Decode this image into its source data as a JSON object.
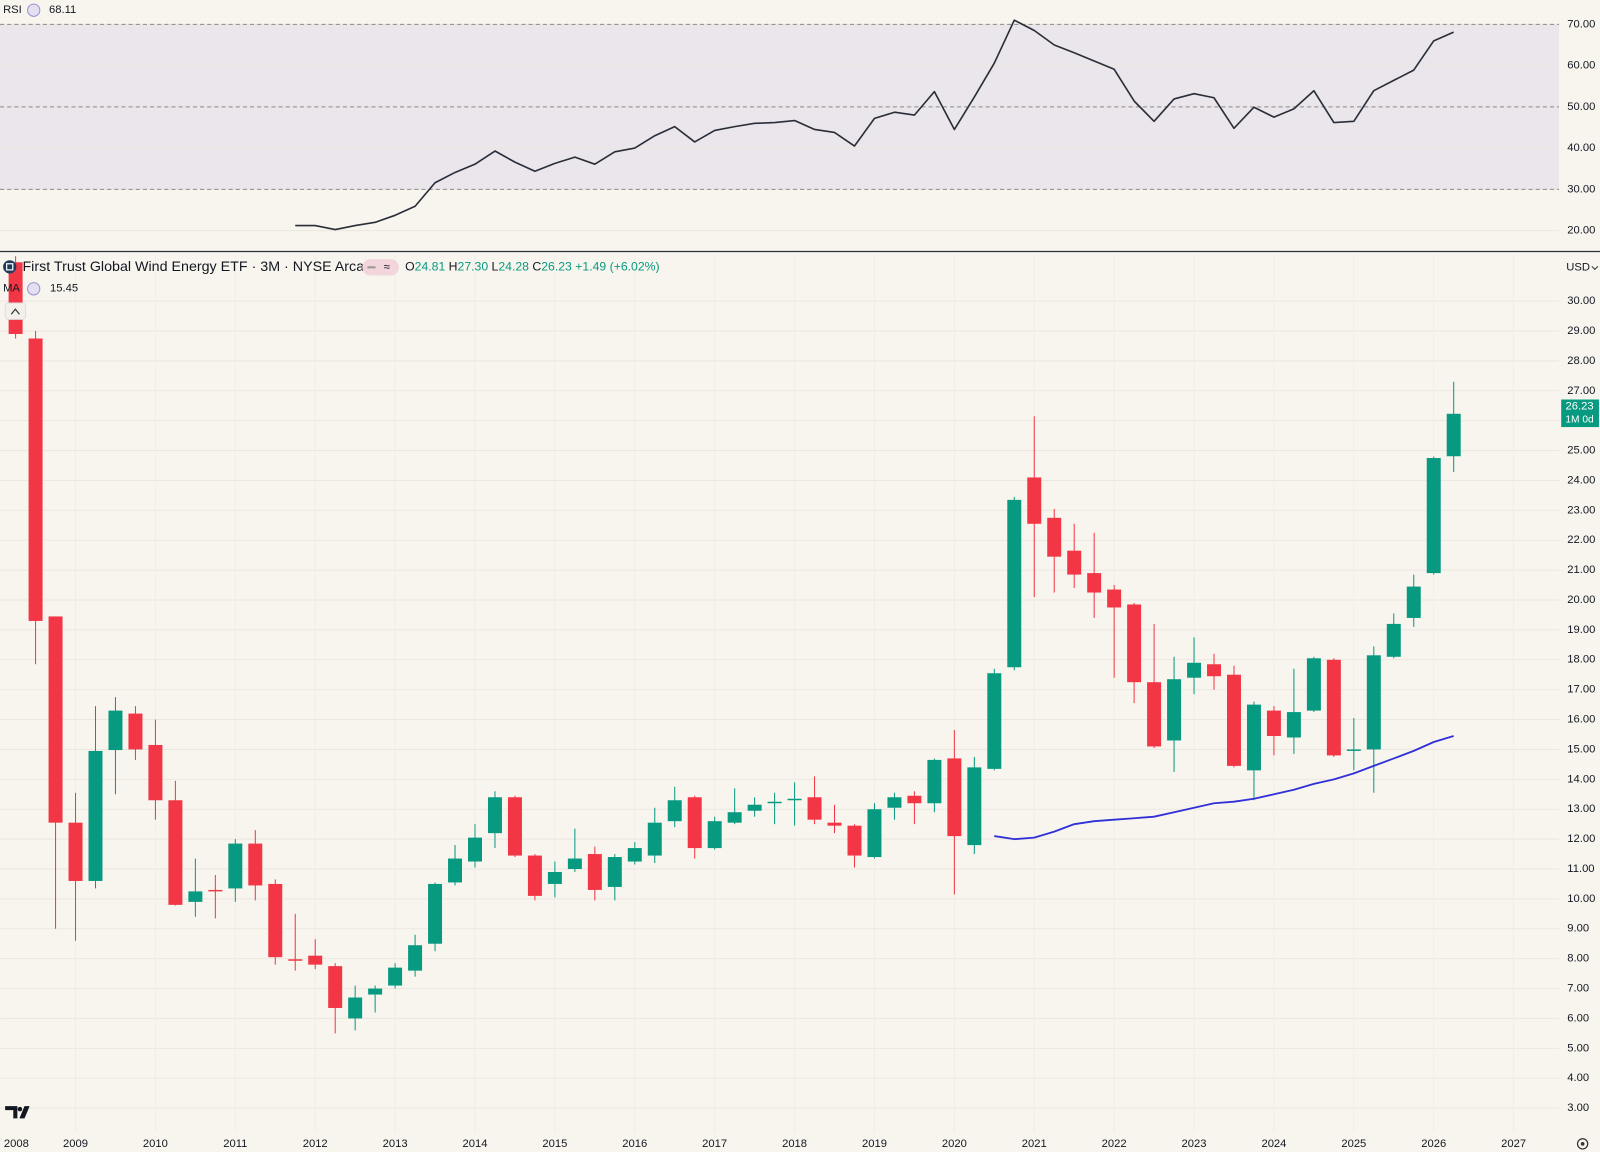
{
  "chart_data": [
    {
      "type": "line",
      "name": "RSI",
      "color": "#2a2e39",
      "x": [
        2008.25,
        2008.5,
        2008.75,
        2009,
        2009.25,
        2009.5,
        2009.75,
        2010,
        2010.25,
        2010.5,
        2010.75,
        2011,
        2011.25,
        2011.5,
        2011.75,
        2012,
        2012.25,
        2012.5,
        2012.75,
        2013,
        2013.25,
        2013.5,
        2013.75,
        2014,
        2014.25,
        2014.5,
        2014.75,
        2015,
        2015.25,
        2015.5,
        2015.75,
        2016,
        2016.25,
        2016.5,
        2016.75,
        2017,
        2017.25,
        2017.5,
        2017.75,
        2018,
        2018.25,
        2018.5,
        2018.75,
        2019,
        2019.25,
        2019.5,
        2019.75,
        2020,
        2020.25,
        2020.5,
        2020.75,
        2021,
        2021.25,
        2021.5,
        2021.75,
        2022,
        2022.25,
        2022.5,
        2022.75,
        2023,
        2023.25,
        2023.5,
        2023.75,
        2024,
        2024.25,
        2024.5,
        2024.75,
        2025,
        2025.25,
        2025.5,
        2025.75,
        2026,
        2026.25
      ],
      "values": [
        null,
        null,
        null,
        null,
        null,
        null,
        null,
        null,
        null,
        null,
        null,
        null,
        null,
        null,
        21.2,
        21.2,
        20.25,
        21.2,
        22.0,
        23.7,
        25.9,
        31.6,
        34.1,
        36.1,
        39.3,
        36.6,
        34.4,
        36.3,
        37.8,
        36.1,
        39.1,
        40.0,
        43.0,
        45.2,
        41.5,
        44.3,
        45.2,
        46.0,
        46.2,
        46.7,
        44.5,
        43.8,
        40.5,
        47.2,
        48.7,
        48.0,
        53.7,
        44.5,
        52.4,
        60.6,
        71.0,
        68.5,
        65.0,
        63.1,
        61.1,
        59.1,
        51.4,
        46.5,
        51.9,
        53.2,
        52.2,
        44.8,
        49.9,
        47.5,
        49.5,
        53.9,
        46.2,
        46.5,
        53.9,
        56.4,
        58.9,
        66.0,
        68.11
      ],
      "ylim": [
        15.3,
        75.9
      ],
      "yticks": [
        {
          "value": 20,
          "label": "20.00"
        },
        {
          "value": 30,
          "label": "30.00"
        },
        {
          "value": 40,
          "label": "40.00"
        },
        {
          "value": 50,
          "label": "50.00"
        },
        {
          "value": 60,
          "label": "60.00"
        },
        {
          "value": 70,
          "label": "70.00"
        }
      ],
      "levels": [
        70,
        50,
        30
      ],
      "band": [
        30,
        70
      ],
      "band_color": "#ebe5ec",
      "grid": true
    },
    {
      "type": "candlestick",
      "title": "First Trust Global Wind Energy ETF · 3M · NYSE Arca",
      "ohlc_legend": [
        {
          "key": "O",
          "value": "24.81"
        },
        {
          "key": "H",
          "value": "27.30"
        },
        {
          "key": "L",
          "value": "24.28"
        },
        {
          "key": "C",
          "value": "26.23"
        }
      ],
      "change": "+1.49 (+6.02%)",
      "currency": "USD",
      "price_tag": {
        "text": "26.23",
        "countdown": "1M 0d"
      },
      "up_color": "#089981",
      "down_color": "#f23645",
      "x": [
        2008.25,
        2008.5,
        2008.75,
        2009,
        2009.25,
        2009.5,
        2009.75,
        2010,
        2010.25,
        2010.5,
        2010.75,
        2011,
        2011.25,
        2011.5,
        2011.75,
        2012,
        2012.25,
        2012.5,
        2012.75,
        2013,
        2013.25,
        2013.5,
        2013.75,
        2014,
        2014.25,
        2014.5,
        2014.75,
        2015,
        2015.25,
        2015.5,
        2015.75,
        2016,
        2016.25,
        2016.5,
        2016.75,
        2017,
        2017.25,
        2017.5,
        2017.75,
        2018,
        2018.25,
        2018.5,
        2018.75,
        2019,
        2019.25,
        2019.5,
        2019.75,
        2020,
        2020.25,
        2020.5,
        2020.75,
        2021,
        2021.25,
        2021.5,
        2021.75,
        2022,
        2022.25,
        2022.5,
        2022.75,
        2023,
        2023.25,
        2023.5,
        2023.75,
        2024,
        2024.25,
        2024.5,
        2024.75,
        2025,
        2025.25,
        2025.5,
        2025.75,
        2026,
        2026.25
      ],
      "open": [
        31.3,
        28.75,
        19.45,
        12.55,
        10.6,
        14.98,
        16.2,
        15.15,
        13.3,
        9.9,
        10.3,
        10.35,
        11.85,
        10.5,
        7.98,
        8.1,
        7.75,
        6.0,
        6.8,
        7.1,
        7.6,
        8.5,
        10.55,
        11.25,
        12.2,
        13.4,
        11.45,
        10.5,
        11.0,
        11.5,
        10.4,
        11.25,
        11.45,
        12.6,
        13.4,
        11.7,
        12.55,
        12.95,
        13.2,
        13.3,
        13.4,
        12.55,
        12.45,
        11.4,
        13.05,
        13.45,
        13.2,
        14.7,
        11.8,
        14.35,
        17.75,
        24.1,
        22.75,
        21.65,
        20.9,
        20.35,
        19.85,
        17.25,
        15.3,
        17.4,
        17.85,
        17.5,
        14.3,
        16.3,
        15.4,
        16.3,
        18.0,
        14.95,
        15.0,
        18.1,
        19.4,
        20.9,
        24.81
      ],
      "high": [
        31.5,
        29.0,
        19.45,
        13.55,
        16.45,
        16.75,
        16.45,
        16.0,
        13.95,
        11.35,
        10.8,
        12.0,
        12.3,
        10.65,
        9.5,
        8.65,
        7.85,
        7.1,
        7.1,
        7.85,
        8.8,
        10.55,
        11.8,
        12.5,
        13.6,
        13.45,
        11.5,
        11.25,
        12.35,
        11.75,
        11.5,
        11.9,
        13.05,
        13.75,
        13.45,
        12.75,
        13.7,
        13.4,
        13.55,
        13.9,
        14.1,
        13.15,
        12.5,
        13.2,
        13.55,
        13.6,
        14.7,
        15.65,
        14.75,
        17.7,
        23.45,
        26.15,
        23.05,
        22.55,
        22.25,
        20.5,
        19.9,
        19.2,
        18.1,
        18.75,
        18.2,
        17.8,
        16.6,
        16.45,
        17.7,
        18.1,
        18.05,
        16.05,
        18.45,
        19.55,
        20.85,
        24.8,
        27.3
      ],
      "low": [
        28.75,
        17.85,
        9.0,
        8.6,
        10.35,
        13.5,
        14.65,
        12.65,
        9.78,
        9.4,
        9.35,
        9.9,
        9.95,
        7.8,
        7.6,
        7.65,
        5.5,
        5.6,
        6.2,
        7.0,
        7.4,
        8.25,
        10.45,
        11.05,
        11.7,
        11.4,
        9.95,
        10.05,
        10.9,
        9.95,
        9.95,
        11.15,
        11.2,
        12.4,
        11.35,
        11.65,
        12.5,
        12.75,
        12.5,
        12.45,
        12.5,
        12.2,
        11.05,
        11.35,
        12.65,
        12.5,
        12.9,
        10.15,
        11.5,
        14.3,
        17.65,
        20.1,
        20.25,
        20.4,
        19.4,
        17.4,
        16.55,
        15.05,
        14.25,
        16.85,
        17.0,
        14.4,
        13.3,
        14.8,
        14.85,
        16.25,
        14.75,
        14.3,
        13.55,
        18.05,
        19.1,
        20.85,
        24.28
      ],
      "close": [
        28.9,
        19.3,
        12.55,
        10.6,
        14.95,
        16.3,
        15.0,
        13.3,
        9.8,
        10.25,
        10.25,
        11.85,
        10.45,
        8.05,
        7.93,
        7.8,
        6.35,
        6.7,
        7.0,
        7.7,
        8.45,
        10.5,
        11.35,
        12.05,
        13.4,
        11.45,
        10.1,
        10.9,
        11.35,
        10.3,
        11.4,
        11.7,
        12.55,
        13.3,
        11.7,
        12.6,
        12.9,
        13.15,
        13.25,
        13.35,
        12.65,
        12.45,
        11.45,
        13.0,
        13.4,
        13.2,
        14.65,
        12.1,
        14.4,
        17.55,
        23.35,
        22.55,
        21.45,
        20.85,
        20.25,
        19.75,
        17.25,
        15.1,
        17.35,
        17.9,
        17.45,
        14.45,
        16.5,
        15.45,
        16.25,
        18.05,
        14.8,
        15.0,
        18.15,
        19.2,
        20.45,
        24.75,
        26.23
      ],
      "overlays": [
        {
          "name": "MA",
          "color": "#3030d8",
          "values": [
            null,
            null,
            null,
            null,
            null,
            null,
            null,
            null,
            null,
            null,
            null,
            null,
            null,
            null,
            null,
            null,
            null,
            null,
            null,
            null,
            null,
            null,
            null,
            null,
            null,
            null,
            null,
            null,
            null,
            null,
            null,
            null,
            null,
            null,
            null,
            null,
            null,
            null,
            null,
            null,
            null,
            null,
            null,
            null,
            null,
            null,
            null,
            null,
            null,
            12.1,
            12.0,
            12.05,
            12.25,
            12.5,
            12.6,
            12.65,
            12.7,
            12.75,
            12.9,
            13.05,
            13.2,
            13.25,
            13.35,
            13.5,
            13.65,
            13.85,
            14.0,
            14.2,
            14.45,
            14.7,
            14.95,
            15.25,
            15.45
          ]
        }
      ],
      "xlim": [
        2008.055,
        2027.57
      ],
      "xticks": [
        2008,
        2009,
        2010,
        2011,
        2012,
        2013,
        2014,
        2015,
        2016,
        2017,
        2018,
        2019,
        2020,
        2021,
        2022,
        2023,
        2024,
        2025,
        2026,
        2027
      ],
      "ylim": [
        2.18,
        31.54
      ],
      "yticks": [
        {
          "value": 3,
          "label": "3.00"
        },
        {
          "value": 4,
          "label": "4.00"
        },
        {
          "value": 5,
          "label": "5.00"
        },
        {
          "value": 6,
          "label": "6.00"
        },
        {
          "value": 7,
          "label": "7.00"
        },
        {
          "value": 8,
          "label": "8.00"
        },
        {
          "value": 9,
          "label": "9.00"
        },
        {
          "value": 10,
          "label": "10.00"
        },
        {
          "value": 11,
          "label": "11.00"
        },
        {
          "value": 12,
          "label": "12.00"
        },
        {
          "value": 13,
          "label": "13.00"
        },
        {
          "value": 14,
          "label": "14.00"
        },
        {
          "value": 15,
          "label": "15.00"
        },
        {
          "value": 16,
          "label": "16.00"
        },
        {
          "value": 17,
          "label": "17.00"
        },
        {
          "value": 18,
          "label": "18.00"
        },
        {
          "value": 19,
          "label": "19.00"
        },
        {
          "value": 20,
          "label": "20.00"
        },
        {
          "value": 21,
          "label": "21.00"
        },
        {
          "value": 22,
          "label": "22.00"
        },
        {
          "value": 23,
          "label": "23.00"
        },
        {
          "value": 24,
          "label": "24.00"
        },
        {
          "value": 25,
          "label": "25.00"
        },
        {
          "value": 26,
          "label": "26.00"
        },
        {
          "value": 27,
          "label": "27.00"
        },
        {
          "value": 28,
          "label": "28.00"
        },
        {
          "value": 29,
          "label": "29.00"
        },
        {
          "value": 30,
          "label": "30.00"
        }
      ],
      "grid": true
    }
  ]
}
